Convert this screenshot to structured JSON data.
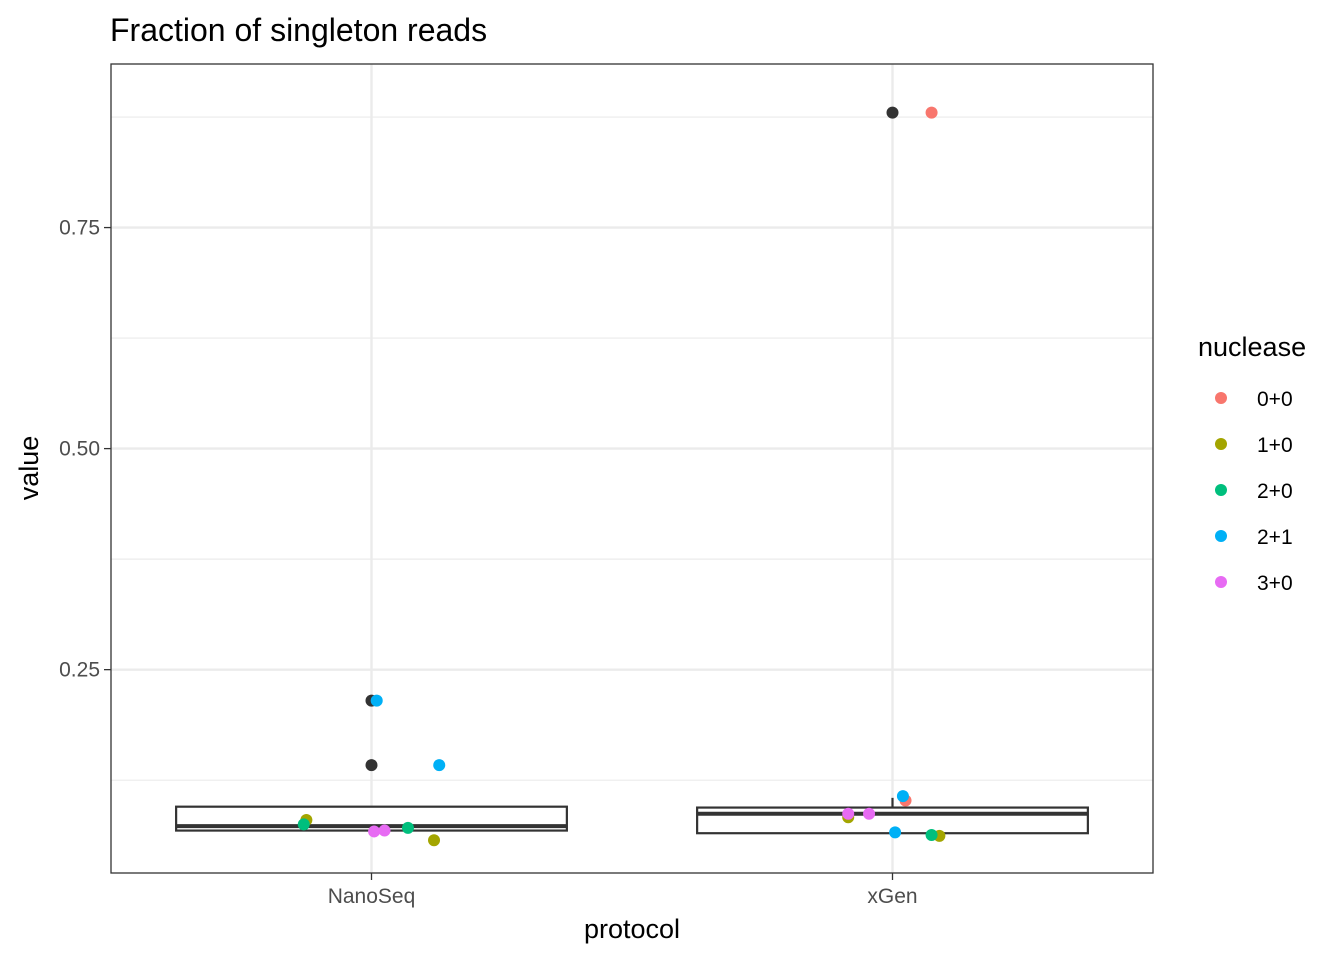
{
  "chart_data": {
    "type": "box",
    "title": "Fraction of singleton reads",
    "xlabel": "protocol",
    "ylabel": "value",
    "categories": [
      "NanoSeq",
      "xGen"
    ],
    "ylim": [
      0.02,
      0.935
    ],
    "yticks": [
      0.25,
      0.5,
      0.75
    ],
    "ytick_labels": [
      "0.25",
      "0.50",
      "0.75"
    ],
    "grid": true,
    "legend": {
      "title": "nuclease",
      "position": "right",
      "items": [
        {
          "label": "0+0",
          "color": "#F8766D"
        },
        {
          "label": "1+0",
          "color": "#A3A500"
        },
        {
          "label": "2+0",
          "color": "#00BF7D"
        },
        {
          "label": "2+1",
          "color": "#00B0F6"
        },
        {
          "label": "3+0",
          "color": "#E76BF3"
        }
      ]
    },
    "outlier_color": "#333333",
    "boxes": [
      {
        "category": "NanoSeq",
        "lower_whisker": 0.068,
        "q1": 0.068,
        "median": 0.073,
        "q3": 0.095,
        "upper_whisker": 0.095,
        "outliers": [
          0.215,
          0.142
        ]
      },
      {
        "category": "xGen",
        "lower_whisker": 0.065,
        "q1": 0.065,
        "median": 0.087,
        "q3": 0.094,
        "upper_whisker": 0.105,
        "outliers": [
          0.88
        ]
      }
    ],
    "points": [
      {
        "category": "NanoSeq",
        "jitter": 0.02,
        "value": 0.215,
        "nuclease": "2+1"
      },
      {
        "category": "NanoSeq",
        "jitter": 0.26,
        "value": 0.142,
        "nuclease": "2+1"
      },
      {
        "category": "NanoSeq",
        "jitter": -0.25,
        "value": 0.08,
        "nuclease": "1+0"
      },
      {
        "category": "NanoSeq",
        "jitter": 0.24,
        "value": 0.057,
        "nuclease": "1+0"
      },
      {
        "category": "NanoSeq",
        "jitter": -0.26,
        "value": 0.075,
        "nuclease": "2+0"
      },
      {
        "category": "NanoSeq",
        "jitter": 0.14,
        "value": 0.071,
        "nuclease": "2+0"
      },
      {
        "category": "NanoSeq",
        "jitter": 0.01,
        "value": 0.067,
        "nuclease": "3+0"
      },
      {
        "category": "NanoSeq",
        "jitter": 0.05,
        "value": 0.068,
        "nuclease": "3+0"
      },
      {
        "category": "xGen",
        "jitter": 0.15,
        "value": 0.88,
        "nuclease": "0+0"
      },
      {
        "category": "xGen",
        "jitter": 0.05,
        "value": 0.102,
        "nuclease": "0+0"
      },
      {
        "category": "xGen",
        "jitter": -0.17,
        "value": 0.083,
        "nuclease": "1+0"
      },
      {
        "category": "xGen",
        "jitter": 0.18,
        "value": 0.062,
        "nuclease": "1+0"
      },
      {
        "category": "xGen",
        "jitter": 0.15,
        "value": 0.063,
        "nuclease": "2+0"
      },
      {
        "category": "xGen",
        "jitter": 0.04,
        "value": 0.107,
        "nuclease": "2+1"
      },
      {
        "category": "xGen",
        "jitter": 0.01,
        "value": 0.066,
        "nuclease": "2+1"
      },
      {
        "category": "xGen",
        "jitter": -0.17,
        "value": 0.087,
        "nuclease": "3+0"
      },
      {
        "category": "xGen",
        "jitter": -0.09,
        "value": 0.087,
        "nuclease": "3+0"
      }
    ]
  }
}
